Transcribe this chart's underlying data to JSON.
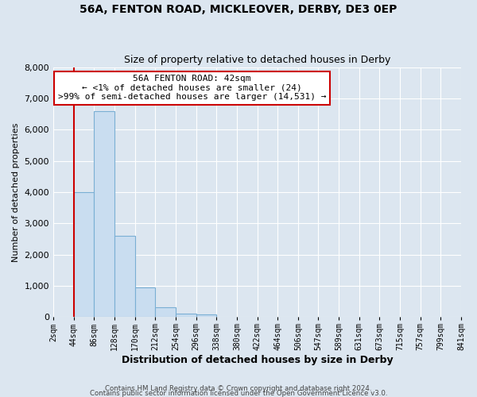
{
  "title_line1": "56A, FENTON ROAD, MICKLEOVER, DERBY, DE3 0EP",
  "title_line2": "Size of property relative to detached houses in Derby",
  "xlabel": "Distribution of detached houses by size in Derby",
  "ylabel": "Number of detached properties",
  "bin_labels": [
    "2sqm",
    "44sqm",
    "86sqm",
    "128sqm",
    "170sqm",
    "212sqm",
    "254sqm",
    "296sqm",
    "338sqm",
    "380sqm",
    "422sqm",
    "464sqm",
    "506sqm",
    "547sqm",
    "589sqm",
    "631sqm",
    "673sqm",
    "715sqm",
    "757sqm",
    "799sqm",
    "841sqm"
  ],
  "bar_heights": [
    0,
    4000,
    6600,
    2600,
    950,
    320,
    120,
    90,
    0,
    0,
    0,
    0,
    0,
    0,
    0,
    0,
    0,
    0,
    0,
    0
  ],
  "bar_color": "#c9ddf0",
  "bar_edge_color": "#7aafd4",
  "property_line_x": 1.0,
  "property_line_color": "#cc0000",
  "ylim": [
    0,
    8000
  ],
  "yticks": [
    0,
    1000,
    2000,
    3000,
    4000,
    5000,
    6000,
    7000,
    8000
  ],
  "annotation_title": "56A FENTON ROAD: 42sqm",
  "annotation_line1": "← <1% of detached houses are smaller (24)",
  "annotation_line2": ">99% of semi-detached houses are larger (14,531) →",
  "annotation_box_color": "#ffffff",
  "annotation_box_edge": "#cc0000",
  "footer1": "Contains HM Land Registry data © Crown copyright and database right 2024.",
  "footer2": "Contains public sector information licensed under the Open Government Licence v3.0.",
  "background_color": "#dce6f0",
  "plot_background": "#dce6f0"
}
